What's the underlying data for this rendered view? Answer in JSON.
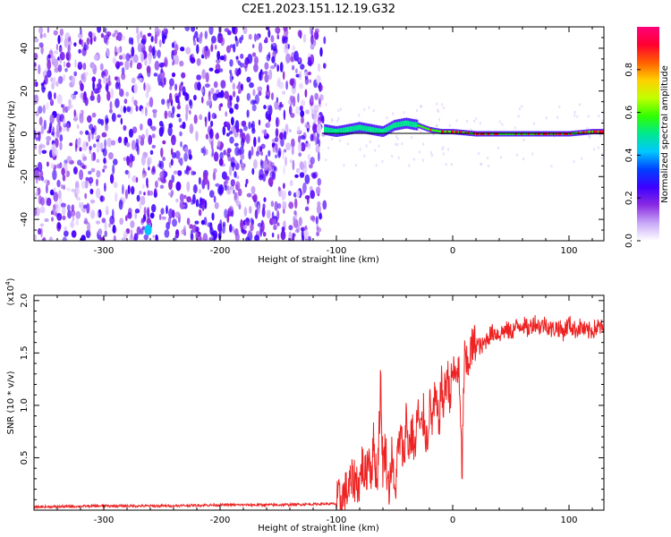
{
  "title": "C2E1.2023.151.12.19.G32",
  "colors": {
    "snr_line": "#ee2222",
    "background": "#ffffff",
    "axis": "#000000"
  },
  "chart_data": [
    {
      "type": "heatmap",
      "name": "spectrogram",
      "xlabel": "Height of straight line (km)",
      "ylabel": "Frequency (Hz)",
      "xlim": [
        -360,
        130
      ],
      "ylim": [
        -50,
        50
      ],
      "xticks": [
        -300,
        -200,
        -100,
        0,
        100
      ],
      "yticks": [
        -40,
        -20,
        0,
        20,
        40
      ],
      "noise_region_x": [
        -360,
        -110
      ],
      "signal_trace": {
        "x": [
          -110,
          -100,
          -90,
          -80,
          -70,
          -60,
          -50,
          -40,
          -30,
          -20,
          -10,
          0,
          20,
          40,
          60,
          80,
          100,
          120,
          130
        ],
        "freq": [
          2,
          1,
          2,
          3,
          2,
          1,
          4,
          5,
          4,
          2,
          1,
          1,
          0,
          0,
          0,
          0,
          0,
          1,
          1
        ]
      }
    },
    {
      "type": "colorbar",
      "name": "colorbar",
      "label": "Normalized spectral amplitude",
      "range": [
        0,
        1
      ],
      "ticks": [
        "0.0",
        "0.2",
        "0.4",
        "0.6",
        "0.8"
      ],
      "colormap": [
        "#ffffff",
        "#c8a8f8",
        "#8a2be2",
        "#3d00ff",
        "#0040ff",
        "#00c8ff",
        "#00e890",
        "#30ff00",
        "#c0ff00",
        "#ffd000",
        "#ff6000",
        "#ff0030",
        "#ff007a"
      ]
    },
    {
      "type": "line",
      "name": "snr",
      "xlabel": "Height of straight line (km)",
      "ylabel": "SNR (10 * v/v)",
      "multiplier_label": "(x10",
      "multiplier_exp": "4",
      "multiplier_close": ")",
      "xlim": [
        -360,
        130
      ],
      "ylim": [
        0,
        2.05
      ],
      "xticks": [
        -300,
        -200,
        -100,
        0,
        100
      ],
      "yticks": [
        "0.5",
        "1.0",
        "1.5",
        "2.0"
      ],
      "series": [
        {
          "name": "SNR",
          "x": [
            -360,
            -300,
            -250,
            -200,
            -150,
            -110,
            -100,
            -95,
            -90,
            -85,
            -80,
            -78,
            -75,
            -72,
            -70,
            -68,
            -65,
            -62,
            -60,
            -58,
            -55,
            -52,
            -50,
            -48,
            -45,
            -42,
            -40,
            -38,
            -35,
            -32,
            -30,
            -28,
            -25,
            -22,
            -20,
            -18,
            -15,
            -12,
            -10,
            -8,
            -5,
            -2,
            0,
            2,
            5,
            8,
            10,
            12,
            15,
            20,
            25,
            30,
            35,
            40,
            45,
            50,
            55,
            60,
            65,
            70,
            75,
            80,
            85,
            90,
            95,
            100,
            105,
            110,
            115,
            120,
            125,
            130
          ],
          "values": [
            0.03,
            0.04,
            0.04,
            0.05,
            0.05,
            0.06,
            0.06,
            0.12,
            0.2,
            0.3,
            0.25,
            0.45,
            0.3,
            0.55,
            0.35,
            0.65,
            0.25,
            1.2,
            0.4,
            0.6,
            0.2,
            0.55,
            0.08,
            0.45,
            0.7,
            0.5,
            0.9,
            0.6,
            0.75,
            0.55,
            1.0,
            0.7,
            0.9,
            0.65,
            1.0,
            0.85,
            1.05,
            0.8,
            1.2,
            1.0,
            1.3,
            1.1,
            1.35,
            1.25,
            1.4,
            0.35,
            1.45,
            1.35,
            1.5,
            1.6,
            1.55,
            1.65,
            1.7,
            1.68,
            1.72,
            1.7,
            1.75,
            1.78,
            1.72,
            1.8,
            1.75,
            1.78,
            1.72,
            1.75,
            1.7,
            1.78,
            1.72,
            1.75,
            1.7,
            1.72,
            1.75,
            1.73
          ]
        }
      ]
    }
  ]
}
